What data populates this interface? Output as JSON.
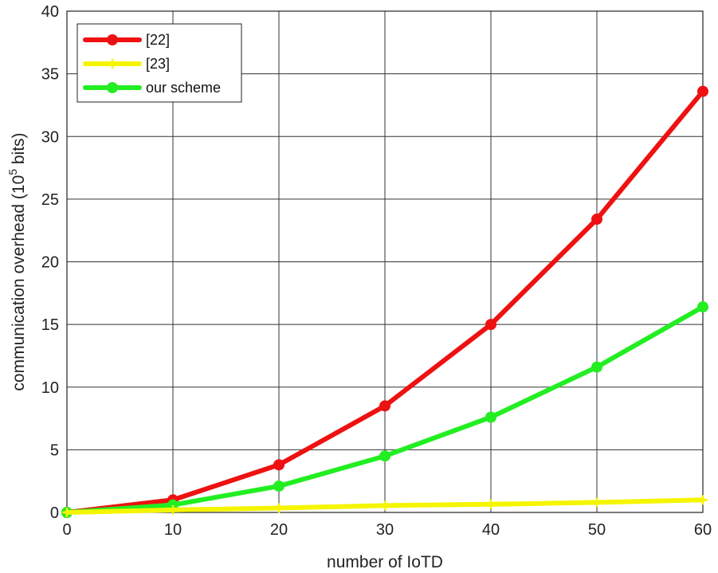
{
  "chart_data": {
    "type": "line",
    "x": [
      0,
      10,
      20,
      30,
      40,
      50,
      60
    ],
    "xlabel": "number of IoTD",
    "ylabel_prefix": "communication overhead (10",
    "ylabel_sup": "5",
    "ylabel_suffix": " bits)",
    "xlim": [
      0,
      60
    ],
    "ylim": [
      0,
      40
    ],
    "xticks": [
      0,
      10,
      20,
      30,
      40,
      50,
      60
    ],
    "yticks": [
      0,
      5,
      10,
      15,
      20,
      25,
      30,
      35,
      40
    ],
    "grid": true,
    "legend_position": "top-left",
    "series": [
      {
        "name": "[22]",
        "color": "#ee1111",
        "marker": "circle",
        "values": [
          0,
          1.0,
          3.8,
          8.5,
          15.0,
          23.4,
          33.6
        ]
      },
      {
        "name": "[23]",
        "color": "#f5f500",
        "marker": "plus",
        "values": [
          0,
          0.2,
          0.35,
          0.55,
          0.65,
          0.8,
          1.0
        ]
      },
      {
        "name": "our scheme",
        "color": "#22ee22",
        "marker": "circle",
        "values": [
          0,
          0.6,
          2.1,
          4.5,
          7.6,
          11.6,
          16.4
        ]
      }
    ]
  }
}
